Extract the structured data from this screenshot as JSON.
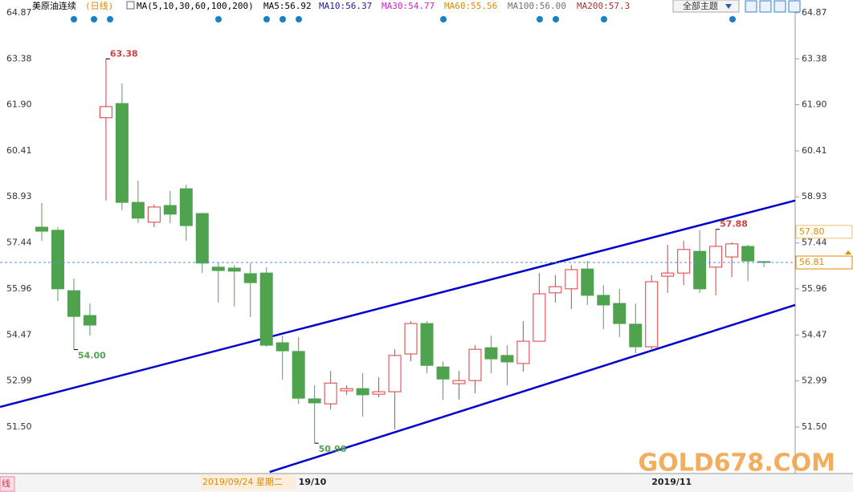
{
  "chart_data": {
    "type": "candlestick",
    "title": "美原油连续",
    "period": "(日线)",
    "indicator": "MA(5,10,30,60,100,200)",
    "ma_legend": [
      {
        "text": "MA5:56.92",
        "color": "#000000"
      },
      {
        "text": "MA10:56.37",
        "color": "#1a1aa6"
      },
      {
        "text": "MA30:54.77",
        "color": "#d020d0"
      },
      {
        "text": "MA60:55.56",
        "color": "#e08a00"
      },
      {
        "text": "MA100:56.00",
        "color": "#707070"
      },
      {
        "text": "MA200:57.3",
        "color": "#b03030"
      }
    ],
    "topic_menu": "全部主题",
    "open": [
      57.95,
      57.85,
      55.9,
      55.1,
      61.48,
      61.94,
      58.75,
      58.11,
      58.65,
      59.19,
      58.39,
      56.66,
      56.63,
      56.45,
      56.47,
      54.22,
      53.94,
      52.41,
      52.25,
      52.67,
      52.74,
      52.56,
      52.64,
      53.86,
      54.84,
      53.44,
      52.9,
      53.0,
      54.06,
      53.81,
      53.55,
      54.27,
      55.83,
      55.96,
      56.6,
      55.75,
      55.49,
      54.82,
      54.09,
      56.37,
      56.47,
      57.17,
      56.66,
      56.99,
      57.33,
      56.84
    ],
    "high": [
      58.73,
      57.95,
      56.29,
      55.49,
      63.38,
      62.59,
      59.45,
      58.68,
      59.12,
      59.32,
      58.42,
      56.79,
      56.73,
      56.79,
      56.66,
      54.45,
      54.4,
      52.85,
      53.31,
      52.85,
      53.24,
      53.11,
      54.01,
      54.92,
      54.92,
      53.62,
      53.31,
      54.14,
      54.45,
      54.14,
      54.92,
      56.47,
      56.4,
      56.73,
      56.86,
      56.08,
      55.96,
      55.49,
      56.4,
      57.38,
      57.51,
      57.85,
      57.88,
      57.46,
      57.38,
      56.86
    ],
    "low": [
      57.51,
      55.57,
      54.0,
      54.45,
      58.81,
      58.5,
      58.08,
      57.95,
      58.08,
      57.51,
      56.47,
      55.52,
      55.39,
      55.05,
      54.09,
      53.03,
      52.25,
      50.98,
      52.07,
      52.54,
      51.84,
      52.46,
      51.42,
      53.62,
      53.24,
      52.38,
      52.38,
      52.59,
      53.24,
      52.85,
      53.29,
      54.27,
      55.52,
      55.31,
      55.44,
      54.66,
      54.4,
      53.88,
      54.01,
      55.83,
      56.08,
      55.83,
      55.75,
      56.34,
      56.21,
      56.66
    ],
    "close": [
      57.82,
      55.96,
      55.07,
      54.79,
      61.84,
      58.75,
      58.24,
      58.6,
      58.37,
      58.0,
      56.79,
      56.55,
      56.53,
      56.16,
      54.14,
      53.96,
      52.43,
      52.28,
      52.92,
      52.74,
      52.54,
      52.64,
      53.81,
      54.84,
      53.49,
      53.05,
      53.0,
      54.01,
      53.7,
      53.6,
      54.27,
      55.8,
      56.03,
      56.58,
      55.75,
      55.44,
      54.84,
      54.09,
      56.19,
      56.47,
      57.23,
      55.96,
      57.33,
      57.41,
      56.86,
      56.81
    ],
    "high_value_labels": [
      null,
      null,
      null,
      null,
      "63.38",
      null,
      null,
      null,
      null,
      null,
      null,
      null,
      null,
      null,
      null,
      null,
      null,
      null,
      null,
      null,
      null,
      null,
      null,
      null,
      null,
      null,
      null,
      null,
      null,
      null,
      null,
      null,
      null,
      null,
      null,
      null,
      null,
      null,
      null,
      null,
      null,
      null,
      "57.88",
      null,
      null,
      null
    ],
    "low_value_labels": [
      null,
      null,
      "54.00",
      null,
      null,
      null,
      null,
      null,
      null,
      null,
      null,
      null,
      null,
      null,
      null,
      null,
      null,
      "50.98",
      null,
      null,
      null,
      null,
      null,
      null,
      null,
      null,
      null,
      null,
      null,
      null,
      null,
      null,
      null,
      null,
      null,
      null,
      null,
      null,
      null,
      null,
      null,
      null,
      null,
      null,
      null,
      null
    ],
    "categories": [
      null,
      null,
      null,
      null,
      null,
      null,
      null,
      null,
      null,
      null,
      null,
      null,
      null,
      null,
      null,
      null,
      "19/10",
      null,
      null,
      null,
      null,
      null,
      null,
      null,
      null,
      null,
      null,
      null,
      null,
      null,
      null,
      null,
      null,
      null,
      null,
      null,
      null,
      null,
      "2019/11",
      null,
      null,
      null,
      null,
      null,
      null,
      null
    ],
    "cursor_label": "2019/09/24 星期二",
    "up_color": "#e03a3a",
    "down_color": "#4fa34f",
    "trendlines": [
      {
        "x": [
          -2.6,
          46.95
        ],
        "y": [
          52.15,
          58.81
        ],
        "color": "#0000cc"
      },
      {
        "x": [
          14.2,
          46.95
        ],
        "y": [
          50.05,
          55.44
        ],
        "color": "#0000cc"
      }
    ],
    "marker_price": {
      "value": 57.8,
      "label": "57.80"
    },
    "ylim": [
      50.0,
      65.28
    ],
    "yticks": [
      64.87,
      63.38,
      {
        "value": 61.9,
        "label": "61.90"
      },
      60.41,
      58.93,
      57.44,
      55.96,
      54.47,
      52.99,
      {
        "value": 51.5,
        "label": "51.50"
      }
    ],
    "left_tab": "线",
    "watermark": "GOLD678.COM"
  }
}
